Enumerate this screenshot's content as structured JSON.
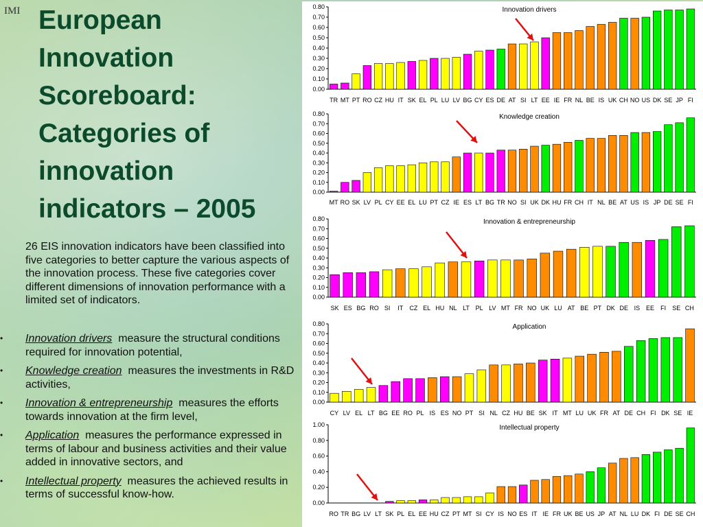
{
  "logo": "IMI",
  "title": "European Innovation Scoreboard: Categories of innovation indicators – 2005",
  "intro": "26 EIS innovation indicators have been classified into five categories to better capture the various aspects of the innovation process. These five categories cover different dimensions of innovation performance with a limited set of indicators.",
  "bullets": [
    {
      "term": "Innovation drivers",
      "text": "measure the structural conditions required for innovation potential,"
    },
    {
      "term": "Knowledge creation",
      "text": "measures the investments in R&D activities,"
    },
    {
      "term": "Innovation & entrepreneurship",
      "text": "measures the efforts towards innovation at the firm level,"
    },
    {
      "term": "Application",
      "text": "measures the performance expressed in terms of labour and business activities and their value added in innovative sectors, and"
    },
    {
      "term": "Intellectual property",
      "text": "measures the achieved results in terms of successful know-how."
    }
  ],
  "colors": {
    "magenta": "#ff00ff",
    "yellow": "#ffff00",
    "orange": "#ff8c00",
    "green": "#00ee00",
    "arrow": "#e01010"
  },
  "chart_data": [
    {
      "type": "bar",
      "title": "Innovation drivers",
      "categories": [
        "TR",
        "MT",
        "PT",
        "RO",
        "CZ",
        "HU",
        "IT",
        "SK",
        "EL",
        "PL",
        "LU",
        "LV",
        "BG",
        "CY",
        "ES",
        "DE",
        "AT",
        "SI",
        "LT",
        "EE",
        "IE",
        "FR",
        "NL",
        "BE",
        "IS",
        "UK",
        "CH",
        "NO",
        "US",
        "DK",
        "SE",
        "JP",
        "FI"
      ],
      "values": [
        0.05,
        0.06,
        0.15,
        0.23,
        0.25,
        0.25,
        0.26,
        0.27,
        0.28,
        0.3,
        0.3,
        0.31,
        0.34,
        0.37,
        0.38,
        0.39,
        0.44,
        0.44,
        0.46,
        0.5,
        0.55,
        0.55,
        0.57,
        0.61,
        0.63,
        0.65,
        0.69,
        0.69,
        0.7,
        0.76,
        0.77,
        0.77,
        0.78
      ],
      "colors": [
        "m",
        "m",
        "y",
        "m",
        "y",
        "y",
        "y",
        "m",
        "y",
        "m",
        "y",
        "y",
        "m",
        "y",
        "m",
        "g",
        "o",
        "y",
        "y",
        "m",
        "o",
        "o",
        "o",
        "o",
        "o",
        "o",
        "g",
        "o",
        "g",
        "g",
        "g",
        "g",
        "g"
      ],
      "ylim": [
        0,
        0.8
      ],
      "yticks": [
        "0.00",
        "0.10",
        "0.20",
        "0.30",
        "0.40",
        "0.50",
        "0.60",
        "0.70",
        "0.80"
      ],
      "highlight": "LT"
    },
    {
      "type": "bar",
      "title": "Knowledge creation",
      "categories": [
        "MT",
        "RO",
        "SK",
        "LV",
        "PL",
        "CY",
        "EE",
        "EL",
        "LU",
        "PT",
        "CZ",
        "IE",
        "ES",
        "LT",
        "BG",
        "TR",
        "NO",
        "SI",
        "UK",
        "DK",
        "HU",
        "FR",
        "CH",
        "IT",
        "NL",
        "BE",
        "AT",
        "US",
        "IS",
        "JP",
        "DE",
        "SE",
        "FI"
      ],
      "values": [
        0.01,
        0.1,
        0.12,
        0.2,
        0.25,
        0.27,
        0.27,
        0.28,
        0.3,
        0.31,
        0.31,
        0.36,
        0.4,
        0.4,
        0.4,
        0.43,
        0.43,
        0.44,
        0.47,
        0.48,
        0.49,
        0.51,
        0.53,
        0.55,
        0.55,
        0.58,
        0.58,
        0.61,
        0.61,
        0.62,
        0.69,
        0.71,
        0.76
      ],
      "colors": [
        "m",
        "m",
        "m",
        "y",
        "y",
        "y",
        "y",
        "y",
        "y",
        "y",
        "y",
        "o",
        "m",
        "y",
        "m",
        "m",
        "o",
        "o",
        "o",
        "g",
        "o",
        "o",
        "g",
        "o",
        "o",
        "o",
        "o",
        "g",
        "o",
        "g",
        "g",
        "g",
        "g"
      ],
      "ylim": [
        0,
        0.8
      ],
      "yticks": [
        "0.00",
        "0.10",
        "0.20",
        "0.30",
        "0.40",
        "0.50",
        "0.60",
        "0.70",
        "0.80"
      ],
      "highlight": "LT"
    },
    {
      "type": "bar",
      "title": "Innovation & entrepreneurship",
      "categories": [
        "SK",
        "ES",
        "BG",
        "RO",
        "SI",
        "IT",
        "CZ",
        "EL",
        "HU",
        "NL",
        "LT",
        "PL",
        "LV",
        "MT",
        "FR",
        "NO",
        "UK",
        "LU",
        "AT",
        "BE",
        "PT",
        "DK",
        "DE",
        "IS",
        "EE",
        "FI",
        "SE",
        "CH"
      ],
      "values": [
        0.23,
        0.25,
        0.25,
        0.26,
        0.28,
        0.29,
        0.29,
        0.31,
        0.35,
        0.36,
        0.36,
        0.37,
        0.38,
        0.38,
        0.38,
        0.39,
        0.45,
        0.47,
        0.49,
        0.51,
        0.52,
        0.52,
        0.56,
        0.56,
        0.58,
        0.59,
        0.72,
        0.73
      ],
      "colors": [
        "m",
        "m",
        "m",
        "m",
        "y",
        "o",
        "y",
        "y",
        "y",
        "o",
        "y",
        "m",
        "y",
        "y",
        "o",
        "o",
        "o",
        "o",
        "o",
        "y",
        "y",
        "g",
        "g",
        "o",
        "m",
        "g",
        "g",
        "g"
      ],
      "ylim": [
        0,
        0.8
      ],
      "yticks": [
        "0.00",
        "0.10",
        "0.20",
        "0.30",
        "0.40",
        "0.50",
        "0.60",
        "0.70",
        "0.80"
      ],
      "highlight": "LT"
    },
    {
      "type": "bar",
      "title": "Application",
      "categories": [
        "CY",
        "LV",
        "EL",
        "LT",
        "BG",
        "EE",
        "RO",
        "PL",
        "IS",
        "ES",
        "NO",
        "PT",
        "SI",
        "NL",
        "CZ",
        "HU",
        "BE",
        "SK",
        "IT",
        "MT",
        "LU",
        "UK",
        "FR",
        "AT",
        "DE",
        "CH",
        "FI",
        "DK",
        "SE",
        "IE"
      ],
      "values": [
        0.09,
        0.11,
        0.13,
        0.15,
        0.17,
        0.21,
        0.24,
        0.24,
        0.25,
        0.26,
        0.26,
        0.29,
        0.33,
        0.38,
        0.38,
        0.39,
        0.4,
        0.43,
        0.44,
        0.45,
        0.47,
        0.49,
        0.51,
        0.52,
        0.57,
        0.63,
        0.65,
        0.66,
        0.66,
        0.75
      ],
      "colors": [
        "y",
        "y",
        "y",
        "y",
        "m",
        "m",
        "m",
        "m",
        "o",
        "m",
        "o",
        "y",
        "y",
        "o",
        "y",
        "o",
        "o",
        "m",
        "m",
        "y",
        "o",
        "o",
        "o",
        "o",
        "g",
        "g",
        "g",
        "g",
        "g",
        "o"
      ],
      "ylim": [
        0,
        0.8
      ],
      "yticks": [
        "0.00",
        "0.10",
        "0.20",
        "0.30",
        "0.40",
        "0.50",
        "0.60",
        "0.70",
        "0.80"
      ],
      "highlight": "LT"
    },
    {
      "type": "bar",
      "title": "Intellectual property",
      "categories": [
        "RO",
        "TR",
        "BG",
        "LV",
        "LT",
        "SK",
        "PL",
        "EL",
        "EE",
        "HU",
        "CZ",
        "PT",
        "MT",
        "SI",
        "CY",
        "IS",
        "NO",
        "ES",
        "IT",
        "IE",
        "FR",
        "UK",
        "BE",
        "US",
        "JP",
        "AT",
        "NL",
        "LU",
        "DK",
        "FI",
        "DE",
        "SE",
        "CH"
      ],
      "values": [
        0,
        0,
        0,
        0,
        0,
        0.02,
        0.03,
        0.03,
        0.04,
        0.04,
        0.07,
        0.07,
        0.08,
        0.08,
        0.13,
        0.21,
        0.21,
        0.23,
        0.29,
        0.3,
        0.34,
        0.35,
        0.37,
        0.4,
        0.45,
        0.51,
        0.57,
        0.58,
        0.62,
        0.65,
        0.68,
        0.7,
        0.96
      ],
      "colors": [
        "m",
        "o",
        "m",
        "y",
        "y",
        "m",
        "y",
        "y",
        "m",
        "y",
        "y",
        "y",
        "y",
        "y",
        "y",
        "o",
        "o",
        "m",
        "o",
        "o",
        "o",
        "o",
        "o",
        "g",
        "g",
        "o",
        "o",
        "o",
        "g",
        "g",
        "g",
        "g",
        "g"
      ],
      "ylim": [
        0,
        1.0
      ],
      "yticks": [
        "0.00",
        "0.20",
        "0.40",
        "0.60",
        "0.80",
        "1.00"
      ],
      "highlight": "LT"
    }
  ]
}
